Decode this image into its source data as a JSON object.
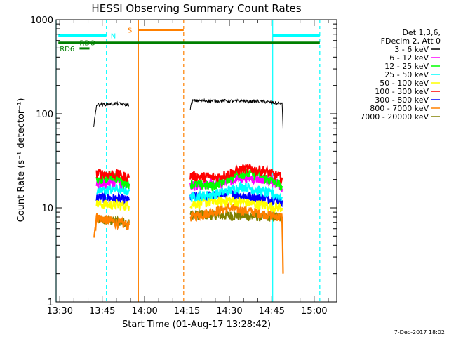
{
  "chart_data": {
    "type": "line",
    "title": "HESSI Observing Summary Count Rates",
    "xlabel": "Start Time (01-Aug-17 13:28:42)",
    "ylabel": "Count Rate (s⁻¹ detector⁻¹)",
    "xlim": [
      "13:28:42",
      "15:08:00"
    ],
    "ylim": [
      1,
      1000
    ],
    "yscale": "log",
    "x_tick_labels": [
      "13:30",
      "13:45",
      "14:00",
      "14:15",
      "14:30",
      "14:45",
      "15:00"
    ],
    "y_tick_labels": [
      "1",
      "10",
      "100",
      "1000"
    ],
    "legend": {
      "position": "right",
      "header": [
        "Det 1,3,6,",
        "FDecim 2, Att 0"
      ],
      "entries": [
        {
          "label": "3 - 6 keV",
          "color": "#000000"
        },
        {
          "label": "6 - 12 keV",
          "color": "#ff00ff"
        },
        {
          "label": "12 - 25 keV",
          "color": "#00ff00"
        },
        {
          "label": "25 - 50 keV",
          "color": "#00ffff"
        },
        {
          "label": "50 - 100 keV",
          "color": "#ffff00"
        },
        {
          "label": "100 - 300 keV",
          "color": "#ff0000"
        },
        {
          "label": "300 - 800 keV",
          "color": "#0000ff"
        },
        {
          "label": "800 - 7000 keV",
          "color": "#ff8000"
        },
        {
          "label": "7000 - 20000 keV",
          "color": "#808000"
        }
      ]
    },
    "series": [
      {
        "label": "3 - 6 keV",
        "color": "#000000",
        "segments": [
          {
            "x": [
              "13:42:00",
              "13:43:00",
              "13:50:00",
              "13:54:30"
            ],
            "y": [
              72,
              125,
              128,
              125
            ]
          },
          {
            "x": [
              "14:16:10",
              "14:17:00",
              "14:30:00",
              "14:42:00",
              "14:48:40",
              "14:49:00"
            ],
            "y": [
              115,
              138,
              137,
              135,
              128,
              68
            ]
          }
        ]
      },
      {
        "label": "6 - 12 keV",
        "color": "#ff00ff",
        "segments": [
          {
            "x": [
              "13:43:00",
              "13:50:00",
              "13:54:30"
            ],
            "y": [
              18,
              19,
              17
            ]
          },
          {
            "x": [
              "14:16:10",
              "14:25:00",
              "14:35:00",
              "14:45:00",
              "14:48:40"
            ],
            "y": [
              17,
              18,
              21,
              20,
              16
            ]
          }
        ]
      },
      {
        "label": "12 - 25 keV",
        "color": "#00ff00",
        "segments": [
          {
            "x": [
              "13:43:00",
              "13:48:00",
              "13:54:30"
            ],
            "y": [
              19,
              22,
              18
            ]
          },
          {
            "x": [
              "14:16:10",
              "14:24:00",
              "14:33:00",
              "14:40:00",
              "14:48:40"
            ],
            "y": [
              18,
              17,
              23,
              23,
              17
            ]
          }
        ]
      },
      {
        "label": "25 - 50 keV",
        "color": "#00ffff",
        "segments": [
          {
            "x": [
              "13:43:00",
              "13:50:00",
              "13:54:30"
            ],
            "y": [
              15,
              16,
              15
            ]
          },
          {
            "x": [
              "14:16:10",
              "14:25:00",
              "14:35:00",
              "14:48:40"
            ],
            "y": [
              13,
              14,
              17,
              13
            ]
          }
        ]
      },
      {
        "label": "50 - 100 keV",
        "color": "#ffff00",
        "segments": [
          {
            "x": [
              "13:43:00",
              "13:54:30"
            ],
            "y": [
              11,
              10.5
            ]
          },
          {
            "x": [
              "14:16:10",
              "14:30:00",
              "14:48:40"
            ],
            "y": [
              11,
              12,
              10
            ]
          }
        ]
      },
      {
        "label": "100 - 300 keV",
        "color": "#ff0000",
        "segments": [
          {
            "x": [
              "13:43:00",
              "13:50:00",
              "13:54:30"
            ],
            "y": [
              23,
              23,
              21
            ]
          },
          {
            "x": [
              "14:16:10",
              "14:25:00",
              "14:35:00",
              "14:42:00",
              "14:48:40"
            ],
            "y": [
              22,
              21,
              26,
              25,
              21
            ]
          }
        ]
      },
      {
        "label": "300 - 800 keV",
        "color": "#0000ff",
        "segments": [
          {
            "x": [
              "13:43:00",
              "13:50:00",
              "13:54:30"
            ],
            "y": [
              13,
              12.5,
              12
            ]
          },
          {
            "x": [
              "14:16:10",
              "14:30:00",
              "14:48:40"
            ],
            "y": [
              13,
              14,
              12
            ]
          }
        ]
      },
      {
        "label": "800 - 7000 keV",
        "color": "#ff8000",
        "segments": [
          {
            "x": [
              "13:42:10",
              "13:43:00",
              "13:50:00",
              "13:54:30"
            ],
            "y": [
              5,
              8,
              7,
              6.5
            ]
          },
          {
            "x": [
              "14:16:10",
              "14:30:00",
              "14:48:40",
              "14:49:00"
            ],
            "y": [
              8,
              10,
              8,
              2
            ]
          }
        ]
      },
      {
        "label": "7000 - 20000 keV",
        "color": "#808000",
        "segments": [
          {
            "x": [
              "13:43:00",
              "13:54:30"
            ],
            "y": [
              7.5,
              7
            ]
          },
          {
            "x": [
              "14:16:10",
              "14:48:40"
            ],
            "y": [
              8.5,
              8
            ]
          }
        ]
      }
    ],
    "vertical_lines": [
      {
        "x": "13:28:42",
        "color": "#00ffff",
        "style": "solid"
      },
      {
        "x": "13:46:30",
        "color": "#00ffff",
        "style": "dashed"
      },
      {
        "x": "13:57:50",
        "color": "#ff8000",
        "style": "solid"
      },
      {
        "x": "14:13:50",
        "color": "#ff8000",
        "style": "dashed"
      },
      {
        "x": "14:45:20",
        "color": "#00ffff",
        "style": "solid"
      },
      {
        "x": "15:02:00",
        "color": "#00ffff",
        "style": "dashed"
      }
    ],
    "flag_bars": [
      {
        "label": "N",
        "color": "#00ffff",
        "segments": [
          [
            "13:29:30",
            "13:46:30"
          ],
          [
            "14:45:20",
            "15:02:00"
          ]
        ],
        "y": 680,
        "label_x": "13:48:00",
        "label_y": 680
      },
      {
        "label": "S",
        "color": "#ff8000",
        "segments": [
          [
            "13:57:50",
            "14:13:50"
          ]
        ],
        "y": 780,
        "label_x": "13:54:00",
        "label_y": 780
      },
      {
        "label": "RDO",
        "color": "#008000",
        "segments": [
          [
            "13:29:30",
            "15:02:00"
          ]
        ],
        "y": 570,
        "label_x": "13:37:00",
        "label_y": 570
      },
      {
        "label": "RD6",
        "color": "#008000",
        "segments": [
          [
            "13:37:00",
            "13:40:30"
          ]
        ],
        "y": 495,
        "label_x": "13:30:00",
        "label_y": 495
      }
    ]
  },
  "timestamp": "7-Dec-2017 18:02"
}
